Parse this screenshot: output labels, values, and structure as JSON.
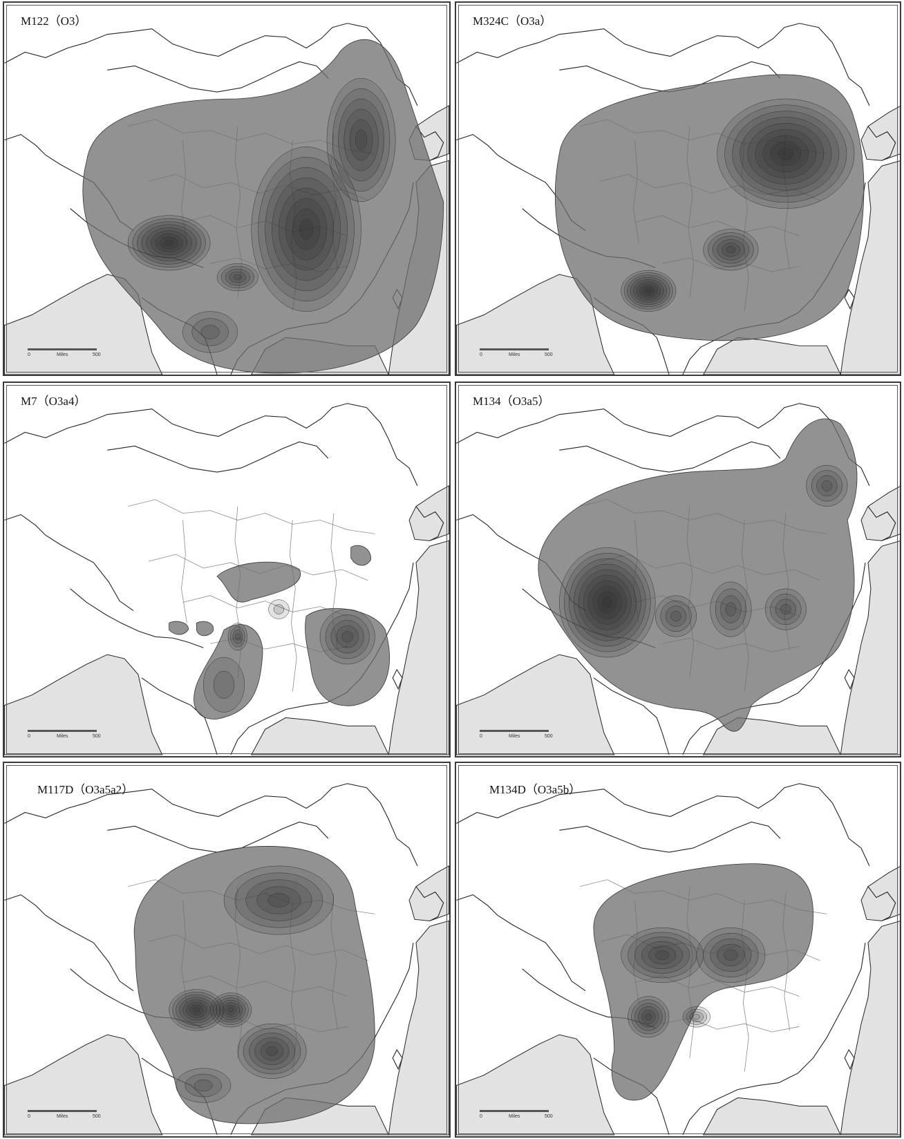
{
  "colors": {
    "land": "#ffffff",
    "sea": "#e2e2e2",
    "border": "#222222",
    "province": "#8a8a8a",
    "contour_fill": "#6e6e6e",
    "contour_line": "#333333"
  },
  "panels": [
    {
      "title": "M122（O3）",
      "scale": {
        "start": "0",
        "unit": "Miles",
        "end": "500"
      }
    },
    {
      "title": "M324C（O3a）",
      "scale": {
        "start": "0",
        "unit": "Miles",
        "end": "500"
      }
    },
    {
      "title": "M7（O3a4）",
      "scale": {
        "start": "0",
        "unit": "Miles",
        "end": "500"
      }
    },
    {
      "title": "M134（O3a5）",
      "scale": {
        "start": "0",
        "unit": "Miles",
        "end": "500"
      }
    },
    {
      "title": "M117D（O3a5a2）",
      "scale": {
        "start": "0",
        "unit": "Miles",
        "end": "500"
      }
    },
    {
      "title": "M134D（O3a5b）",
      "scale": {
        "start": "0",
        "unit": "Miles",
        "end": "500"
      }
    }
  ]
}
